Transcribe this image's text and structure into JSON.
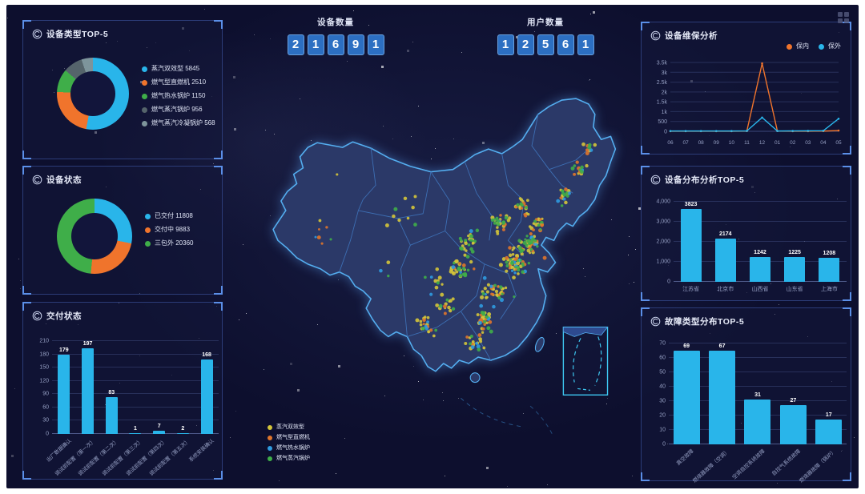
{
  "header": {
    "device_count": {
      "label": "设备数量",
      "digits": [
        "2",
        "1",
        "6",
        "9",
        "1"
      ]
    },
    "user_count": {
      "label": "用户数量",
      "digits": [
        "1",
        "2",
        "5",
        "6",
        "1"
      ]
    }
  },
  "colors": {
    "accent_blue": "#29b5ea",
    "orange": "#f0742c",
    "green": "#3fae49",
    "slate_dark": "#55646b",
    "slate_light": "#7d949b",
    "panel_border": "#2c3c78",
    "background": "#0d0f2e",
    "map_land": "#2b3968",
    "map_border": "#54aef0"
  },
  "chart_data": [
    {
      "id": "device-type-donut",
      "type": "pie",
      "donut": true,
      "title": "设备类型TOP-5",
      "legend_position": "right",
      "series": [
        {
          "name": "蒸汽双效型",
          "value": 5845,
          "color": "#29b5ea"
        },
        {
          "name": "燃气型直燃机",
          "value": 2510,
          "color": "#f0742c"
        },
        {
          "name": "燃气热水锅炉",
          "value": 1150,
          "color": "#3fae49"
        },
        {
          "name": "燃气蒸汽锅炉",
          "value": 956,
          "color": "#55646b"
        },
        {
          "name": "燃气蒸汽冷凝锅炉",
          "value": 568,
          "color": "#7d949b"
        }
      ]
    },
    {
      "id": "device-status-donut",
      "type": "pie",
      "donut": true,
      "title": "设备状态",
      "legend_position": "right",
      "series": [
        {
          "name": "已交付",
          "value": 11808,
          "color": "#29b5ea"
        },
        {
          "name": "交付中",
          "value": 9883,
          "color": "#f0742c"
        },
        {
          "name": "三包外",
          "value": 20360,
          "color": "#3fae49"
        }
      ]
    },
    {
      "id": "delivery-bar",
      "type": "bar",
      "title": "交付状态",
      "categories": [
        "出厂数据确认",
        "调试前配置（第一次）",
        "调试前配置（第二次）",
        "调试前配置（第三次）",
        "调试前配置（第四次）",
        "调试前配置（第五次）",
        "系统安装确认"
      ],
      "values": [
        179,
        197,
        83,
        1,
        7,
        2,
        168
      ],
      "ylim": [
        0,
        210
      ],
      "yticks": [
        0,
        30,
        60,
        90,
        120,
        150,
        180,
        210
      ],
      "bar_color": "#29b5ea",
      "rotated_labels": true,
      "grid": true
    },
    {
      "id": "maintenance-line",
      "type": "line",
      "title": "设备维保分析",
      "x": [
        "06",
        "07",
        "08",
        "09",
        "10",
        "11",
        "12",
        "01",
        "02",
        "03",
        "04",
        "05"
      ],
      "ylim": [
        0,
        3500
      ],
      "yticks": [
        0,
        500,
        1000,
        1500,
        2000,
        2500,
        3000,
        3500
      ],
      "ytick_labels": [
        "0",
        "500",
        "1k",
        "1.5k",
        "2k",
        "2.5k",
        "3k",
        "3.5k"
      ],
      "legend_position": "top-right",
      "grid": true,
      "series": [
        {
          "name": "保内",
          "color": "#f0742c",
          "values": [
            5,
            5,
            5,
            5,
            5,
            10,
            3450,
            10,
            5,
            5,
            10,
            40
          ]
        },
        {
          "name": "保外",
          "color": "#29b5ea",
          "values": [
            15,
            15,
            15,
            15,
            15,
            20,
            700,
            15,
            20,
            25,
            30,
            640
          ]
        }
      ]
    },
    {
      "id": "distribution-bar",
      "type": "bar",
      "title": "设备分布分析TOP-5",
      "categories": [
        "江苏省",
        "北京市",
        "山西省",
        "山东省",
        "上海市"
      ],
      "values": [
        3823,
        2174,
        1242,
        1225,
        1208
      ],
      "ylim": [
        0,
        4000
      ],
      "yticks": [
        0,
        1000,
        2000,
        3000,
        4000
      ],
      "ytick_labels": [
        "0",
        "1,000",
        "2,000",
        "3,000",
        "4,000"
      ],
      "bar_color": "#29b5ea",
      "rotated_labels": false,
      "grid": true
    },
    {
      "id": "fault-bar",
      "type": "bar",
      "title": "故障类型分布TOP-5",
      "categories": [
        "真空故障",
        "燃烧器故障（空调）",
        "空调自控系统故障",
        "自控气系统故障",
        "燃烧器故障（锅炉）"
      ],
      "values": [
        69,
        67,
        31,
        27,
        17
      ],
      "ylim": [
        0,
        70
      ],
      "yticks": [
        0,
        10,
        20,
        30,
        40,
        50,
        60,
        70
      ],
      "bar_color": "#29b5ea",
      "rotated_labels": true,
      "grid": true
    },
    {
      "id": "china-map",
      "type": "scatter",
      "title": "",
      "legend": [
        {
          "name": "蒸汽双效型",
          "color": "#d4c53a"
        },
        {
          "name": "燃气型直燃机",
          "color": "#e0762b"
        },
        {
          "name": "燃气热水锅炉",
          "color": "#2f9be0"
        },
        {
          "name": "燃气蒸汽锅炉",
          "color": "#3fae49"
        }
      ],
      "dot_counts": {
        "蒸汽双效型": 200,
        "燃气型直燃机": 85,
        "燃气热水锅炉": 40,
        "燃气蒸汽锅炉": 115
      }
    }
  ]
}
